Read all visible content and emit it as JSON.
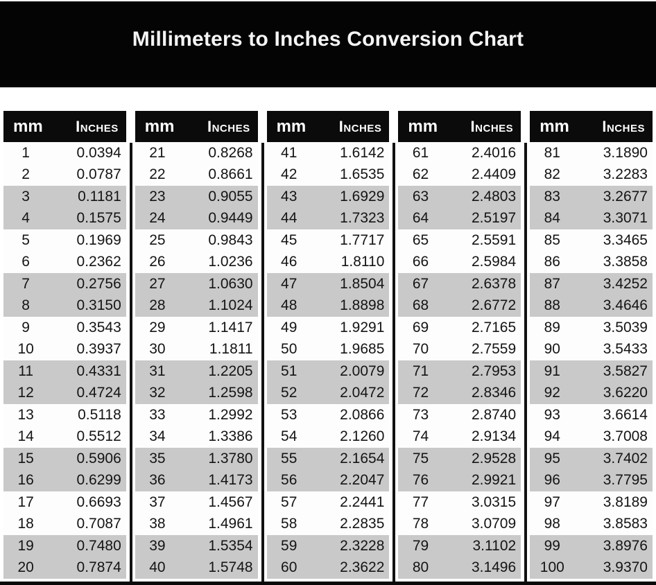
{
  "title": "Millimeters to Inches Conversion Chart",
  "table": {
    "header_mm": "mm",
    "header_inches": "Inches",
    "columns": [
      {
        "rows": [
          [
            "1",
            "0.0394"
          ],
          [
            "2",
            "0.0787"
          ],
          [
            "3",
            "0.1181"
          ],
          [
            "4",
            "0.1575"
          ],
          [
            "5",
            "0.1969"
          ],
          [
            "6",
            "0.2362"
          ],
          [
            "7",
            "0.2756"
          ],
          [
            "8",
            "0.3150"
          ],
          [
            "9",
            "0.3543"
          ],
          [
            "10",
            "0.3937"
          ],
          [
            "11",
            "0.4331"
          ],
          [
            "12",
            "0.4724"
          ],
          [
            "13",
            "0.5118"
          ],
          [
            "14",
            "0.5512"
          ],
          [
            "15",
            "0.5906"
          ],
          [
            "16",
            "0.6299"
          ],
          [
            "17",
            "0.6693"
          ],
          [
            "18",
            "0.7087"
          ],
          [
            "19",
            "0.7480"
          ],
          [
            "20",
            "0.7874"
          ]
        ]
      },
      {
        "rows": [
          [
            "21",
            "0.8268"
          ],
          [
            "22",
            "0.8661"
          ],
          [
            "23",
            "0.9055"
          ],
          [
            "24",
            "0.9449"
          ],
          [
            "25",
            "0.9843"
          ],
          [
            "26",
            "1.0236"
          ],
          [
            "27",
            "1.0630"
          ],
          [
            "28",
            "1.1024"
          ],
          [
            "29",
            "1.1417"
          ],
          [
            "30",
            "1.1811"
          ],
          [
            "31",
            "1.2205"
          ],
          [
            "32",
            "1.2598"
          ],
          [
            "33",
            "1.2992"
          ],
          [
            "34",
            "1.3386"
          ],
          [
            "35",
            "1.3780"
          ],
          [
            "36",
            "1.4173"
          ],
          [
            "37",
            "1.4567"
          ],
          [
            "38",
            "1.4961"
          ],
          [
            "39",
            "1.5354"
          ],
          [
            "40",
            "1.5748"
          ]
        ]
      },
      {
        "rows": [
          [
            "41",
            "1.6142"
          ],
          [
            "42",
            "1.6535"
          ],
          [
            "43",
            "1.6929"
          ],
          [
            "44",
            "1.7323"
          ],
          [
            "45",
            "1.7717"
          ],
          [
            "46",
            "1.8110"
          ],
          [
            "47",
            "1.8504"
          ],
          [
            "48",
            "1.8898"
          ],
          [
            "49",
            "1.9291"
          ],
          [
            "50",
            "1.9685"
          ],
          [
            "51",
            "2.0079"
          ],
          [
            "52",
            "2.0472"
          ],
          [
            "53",
            "2.0866"
          ],
          [
            "54",
            "2.1260"
          ],
          [
            "55",
            "2.1654"
          ],
          [
            "56",
            "2.2047"
          ],
          [
            "57",
            "2.2441"
          ],
          [
            "58",
            "2.2835"
          ],
          [
            "59",
            "2.3228"
          ],
          [
            "60",
            "2.3622"
          ]
        ]
      },
      {
        "rows": [
          [
            "61",
            "2.4016"
          ],
          [
            "62",
            "2.4409"
          ],
          [
            "63",
            "2.4803"
          ],
          [
            "64",
            "2.5197"
          ],
          [
            "65",
            "2.5591"
          ],
          [
            "66",
            "2.5984"
          ],
          [
            "67",
            "2.6378"
          ],
          [
            "68",
            "2.6772"
          ],
          [
            "69",
            "2.7165"
          ],
          [
            "70",
            "2.7559"
          ],
          [
            "71",
            "2.7953"
          ],
          [
            "72",
            "2.8346"
          ],
          [
            "73",
            "2.8740"
          ],
          [
            "74",
            "2.9134"
          ],
          [
            "75",
            "2.9528"
          ],
          [
            "76",
            "2.9921"
          ],
          [
            "77",
            "3.0315"
          ],
          [
            "78",
            "3.0709"
          ],
          [
            "79",
            "3.1102"
          ],
          [
            "80",
            "3.1496"
          ]
        ]
      },
      {
        "rows": [
          [
            "81",
            "3.1890"
          ],
          [
            "82",
            "3.2283"
          ],
          [
            "83",
            "3.2677"
          ],
          [
            "84",
            "3.3071"
          ],
          [
            "85",
            "3.3465"
          ],
          [
            "86",
            "3.3858"
          ],
          [
            "87",
            "3.4252"
          ],
          [
            "88",
            "3.4646"
          ],
          [
            "89",
            "3.5039"
          ],
          [
            "90",
            "3.5433"
          ],
          [
            "91",
            "3.5827"
          ],
          [
            "92",
            "3.6220"
          ],
          [
            "93",
            "3.6614"
          ],
          [
            "94",
            "3.7008"
          ],
          [
            "95",
            "3.7402"
          ],
          [
            "96",
            "3.7795"
          ],
          [
            "97",
            "3.8189"
          ],
          [
            "98",
            "3.8583"
          ],
          [
            "99",
            "3.8976"
          ],
          [
            "100",
            "3.9370"
          ]
        ]
      }
    ]
  },
  "colors": {
    "banner_bg": "#040404",
    "header_bg": "#0b0b0b",
    "stripe": "#c9c9c9",
    "row_bg": "#fdfdfd",
    "text": "#141414"
  }
}
